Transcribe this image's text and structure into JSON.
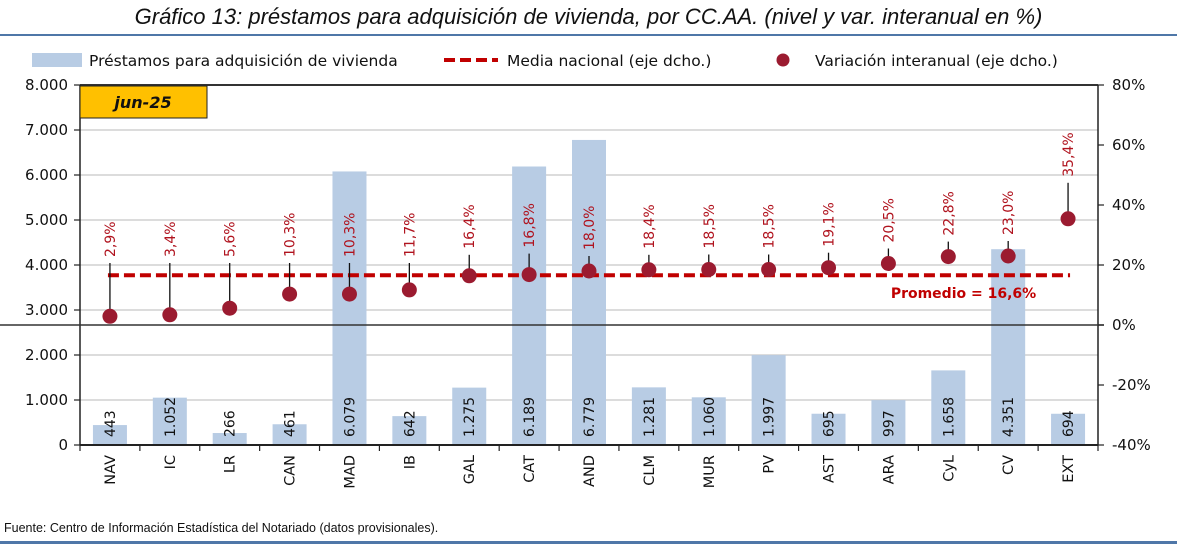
{
  "header": {
    "title": "Gráfico 13: préstamos para adquisición de vivienda, por CC.AA. (nivel y var. interanual en %)"
  },
  "footer": {
    "source": "Fuente: Centro de Información Estadística del Notariado (datos provisionales)."
  },
  "colors": {
    "bars": "#b8cce4",
    "average_line": "#c00000",
    "points": "#9b1b30",
    "point_labels": "#b0131e",
    "date_badge": "#ffc000",
    "rule": "#4f77a8"
  },
  "chart_data": {
    "type": "bar",
    "title": "Gráfico 13: préstamos para adquisición de vivienda, por CC.AA. (nivel y var. interanual en %)",
    "period_badge": "jun-25",
    "categories": [
      "NAV",
      "IC",
      "LR",
      "CAN",
      "MAD",
      "IB",
      "GAL",
      "CAT",
      "AND",
      "CLM",
      "MUR",
      "PV",
      "AST",
      "ARA",
      "CyL",
      "CV",
      "EXT"
    ],
    "series": [
      {
        "name": "Préstamos para adquisición de vivienda",
        "type": "bar",
        "axis": "left",
        "values": [
          443,
          1052,
          266,
          461,
          6079,
          642,
          1275,
          6189,
          6779,
          1281,
          1060,
          1997,
          695,
          997,
          1658,
          4351,
          694
        ],
        "labels": [
          "443",
          "1.052",
          "266",
          "461",
          "6.079",
          "642",
          "1.275",
          "6.189",
          "6.779",
          "1.281",
          "1.060",
          "1.997",
          "695",
          "997",
          "1.658",
          "4.351",
          "694"
        ]
      },
      {
        "name": "Media nacional (eje dcho.)",
        "type": "line",
        "style": "dashed",
        "axis": "right",
        "value": 16.6,
        "annotation": "Promedio = 16,6%"
      },
      {
        "name": "Variación interanual (eje dcho.)",
        "type": "scatter",
        "axis": "right",
        "values": [
          2.9,
          3.4,
          5.6,
          10.3,
          10.3,
          11.7,
          16.4,
          16.8,
          18.0,
          18.4,
          18.5,
          18.5,
          19.1,
          20.5,
          22.8,
          23.0,
          35.4
        ],
        "labels": [
          "2,9%",
          "3,4%",
          "5,6%",
          "10,3%",
          "10,3%",
          "11,7%",
          "16,4%",
          "16,8%",
          "18,0%",
          "18,4%",
          "18,5%",
          "18,5%",
          "19,1%",
          "20,5%",
          "22,8%",
          "23,0%",
          "35,4%"
        ]
      }
    ],
    "left_axis": {
      "ylim": [
        0,
        8000
      ],
      "ticks": [
        0,
        1000,
        2000,
        3000,
        4000,
        5000,
        6000,
        7000,
        8000
      ],
      "tick_labels": [
        "0",
        "1.000",
        "2.000",
        "3.000",
        "4.000",
        "5.000",
        "6.000",
        "7.000",
        "8.000"
      ]
    },
    "right_axis": {
      "ylim": [
        -40,
        80
      ],
      "ticks": [
        -40,
        -20,
        0,
        20,
        40,
        60,
        80
      ],
      "tick_labels": [
        "-40%",
        "-20%",
        "0%",
        "20%",
        "40%",
        "60%",
        "80%"
      ]
    },
    "legend": {
      "placement": "top",
      "entries": [
        "Préstamos para adquisición de vivienda",
        "Media nacional (eje dcho.)",
        "Variación interanual (eje dcho.)"
      ]
    },
    "grid": true,
    "xlabel": "",
    "ylabel": ""
  }
}
